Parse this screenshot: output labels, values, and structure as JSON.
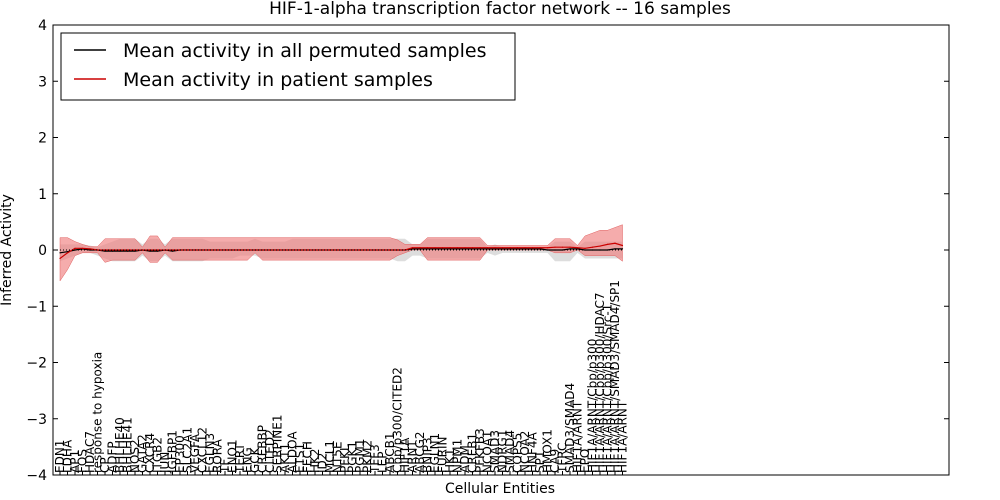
{
  "chart_data": {
    "type": "line",
    "title": "HIF-1-alpha transcription factor network -- 16 samples",
    "xlabel": "Cellular Entities",
    "ylabel": "Inferred Activity",
    "ylim": [
      -4,
      4
    ],
    "yticks": [
      "4",
      "3",
      "2",
      "1",
      "0",
      "−1",
      "−2",
      "−3",
      "−4"
    ],
    "grid": false,
    "legend_position": "top-left",
    "categories": [
      "EDN1",
      "LDHA",
      "AP1",
      "FOS",
      "HDAC7",
      "response to hypoxia",
      "CP",
      "ADFP",
      "BHLHE40",
      "BHLHE41",
      "NOS2",
      "GATA2",
      "CXCR4",
      "ITGB2",
      "JUN",
      "IGFBP1",
      "EP300",
      "SLC2A1",
      "VEGFA",
      "CXCL12",
      "EGLN3",
      "RORA",
      "TF",
      "ENO1",
      "TERT",
      "ENG",
      "GCK",
      "CREBBP",
      "CITED2",
      "SERPINE1",
      "AKT1",
      "ALDOA",
      "ETS1",
      "FECH",
      "HK2",
      "ID2",
      "MCL1",
      "NT5E",
      "PFKL",
      "PGK1",
      "PGM1",
      "PKM2",
      "TFF3",
      "LEP",
      "ABCB1",
      "Cbp/p300/CITED2",
      "HIF1A",
      "ARNT",
      "ABCG2",
      "BNIP3",
      "EGLN1",
      "FURIN",
      "HK1",
      "NPM1",
      "ADM",
      "CREB1",
      "PFKFB3",
      "NCOA1",
      "SMAD3",
      "NDRG1",
      "SMAD4",
      "COPS5",
      "NCOA2",
      "HNF4A",
      "SP1",
      "HMOX1",
      "CA9",
      "TFRC",
      "SMAD3/SMAD4",
      "HIF1A/ARNT",
      "EPO",
      "HIF1A/ARNT/Cbp/p300",
      "HIF1A/ARNT/Cbp/p300/HDAC7",
      "HIF1A/ARNT/Cbp/p300/Src-1",
      "HIF1A/ARNT/SMAD3/SMAD4/SP1",
      "HIF1A/ARNT"
    ],
    "series": [
      {
        "name": "Mean activity in all permuted samples",
        "color": "#000000",
        "values": [
          -0.05,
          -0.03,
          0.0,
          0.02,
          0.0,
          0.0,
          -0.02,
          -0.02,
          -0.02,
          -0.02,
          -0.02,
          0.0,
          -0.02,
          -0.02,
          0.0,
          -0.02,
          0.0,
          0.0,
          0.0,
          0.0,
          0.0,
          0.0,
          0.0,
          0.0,
          0.0,
          0.0,
          0.0,
          0.0,
          0.0,
          0.0,
          0.0,
          0.0,
          0.0,
          0.0,
          0.0,
          0.0,
          0.0,
          0.0,
          0.0,
          0.0,
          0.0,
          0.0,
          0.0,
          0.0,
          0.0,
          0.0,
          0.0,
          0.02,
          0.02,
          0.02,
          0.02,
          0.02,
          0.02,
          0.02,
          0.02,
          0.02,
          0.02,
          0.02,
          0.02,
          0.02,
          0.02,
          0.02,
          0.02,
          0.02,
          0.02,
          0.0,
          0.0,
          0.0,
          0.02,
          0.02,
          0.0,
          0.0,
          0.0,
          0.0,
          0.02,
          0.02
        ],
        "band": {
          "color": "#bbbbbb",
          "lower": [
            -0.2,
            -0.15,
            -0.1,
            -0.05,
            -0.05,
            -0.1,
            -0.15,
            -0.2,
            -0.2,
            -0.2,
            -0.2,
            -0.1,
            -0.2,
            -0.2,
            -0.1,
            -0.2,
            -0.2,
            -0.2,
            -0.2,
            -0.2,
            -0.15,
            -0.15,
            -0.15,
            -0.15,
            -0.1,
            -0.1,
            -0.1,
            -0.15,
            -0.15,
            -0.15,
            -0.15,
            -0.15,
            -0.15,
            -0.15,
            -0.15,
            -0.15,
            -0.15,
            -0.15,
            -0.15,
            -0.15,
            -0.15,
            -0.15,
            -0.15,
            -0.15,
            -0.15,
            -0.2,
            -0.2,
            -0.1,
            -0.1,
            -0.15,
            -0.15,
            -0.15,
            -0.15,
            -0.15,
            -0.15,
            -0.15,
            -0.15,
            -0.05,
            -0.1,
            -0.05,
            -0.05,
            -0.05,
            -0.05,
            -0.05,
            -0.05,
            -0.05,
            -0.2,
            -0.2,
            -0.2,
            -0.05,
            -0.15,
            -0.15,
            -0.15,
            -0.15,
            -0.15,
            -0.15
          ],
          "upper": [
            0.1,
            0.1,
            0.1,
            0.1,
            0.08,
            0.05,
            0.1,
            0.15,
            0.2,
            0.2,
            0.2,
            0.1,
            0.2,
            0.2,
            0.1,
            0.2,
            0.2,
            0.2,
            0.2,
            0.2,
            0.15,
            0.15,
            0.15,
            0.15,
            0.15,
            0.15,
            0.2,
            0.15,
            0.15,
            0.15,
            0.15,
            0.2,
            0.2,
            0.2,
            0.2,
            0.2,
            0.2,
            0.2,
            0.2,
            0.2,
            0.2,
            0.2,
            0.2,
            0.2,
            0.2,
            0.2,
            0.2,
            0.1,
            0.1,
            0.2,
            0.2,
            0.2,
            0.2,
            0.2,
            0.2,
            0.2,
            0.2,
            0.05,
            0.1,
            0.05,
            0.05,
            0.05,
            0.05,
            0.05,
            0.05,
            0.05,
            0.15,
            0.15,
            0.15,
            0.05,
            0.15,
            0.15,
            0.15,
            0.15,
            0.15,
            0.15
          ]
        }
      },
      {
        "name": "Mean activity in patient samples",
        "color": "#cc0000",
        "values": [
          -0.15,
          -0.05,
          0.03,
          0.03,
          0.02,
          0.0,
          0.0,
          0.0,
          0.0,
          0.0,
          0.0,
          0.0,
          0.0,
          0.0,
          0.0,
          0.0,
          0.0,
          0.0,
          0.0,
          0.0,
          0.0,
          0.0,
          0.0,
          0.0,
          0.0,
          0.0,
          0.0,
          0.0,
          0.0,
          0.0,
          0.0,
          0.0,
          0.0,
          0.0,
          0.0,
          0.0,
          0.0,
          0.0,
          0.0,
          0.0,
          0.0,
          0.0,
          0.0,
          0.0,
          0.0,
          0.0,
          0.0,
          0.04,
          0.04,
          0.04,
          0.04,
          0.04,
          0.04,
          0.04,
          0.04,
          0.04,
          0.04,
          0.04,
          0.04,
          0.04,
          0.04,
          0.04,
          0.04,
          0.04,
          0.04,
          0.04,
          0.05,
          0.05,
          0.05,
          0.04,
          0.03,
          0.05,
          0.07,
          0.1,
          0.12,
          0.08
        ],
        "band": {
          "color": "#f08080",
          "lower": [
            -0.55,
            -0.35,
            -0.1,
            -0.05,
            -0.05,
            -0.05,
            -0.22,
            -0.18,
            -0.18,
            -0.18,
            -0.18,
            -0.05,
            -0.22,
            -0.22,
            -0.05,
            -0.18,
            -0.18,
            -0.18,
            -0.18,
            -0.18,
            -0.18,
            -0.18,
            -0.18,
            -0.18,
            -0.18,
            -0.18,
            -0.05,
            -0.18,
            -0.18,
            -0.18,
            -0.18,
            -0.18,
            -0.18,
            -0.18,
            -0.18,
            -0.18,
            -0.18,
            -0.18,
            -0.18,
            -0.18,
            -0.18,
            -0.18,
            -0.18,
            -0.18,
            -0.18,
            -0.1,
            -0.05,
            0.0,
            0.0,
            -0.18,
            -0.18,
            -0.18,
            -0.18,
            -0.18,
            -0.18,
            -0.18,
            -0.18,
            0.0,
            0.0,
            0.0,
            0.0,
            0.0,
            0.0,
            0.0,
            0.0,
            0.0,
            -0.05,
            -0.05,
            -0.05,
            0.0,
            -0.1,
            -0.1,
            -0.1,
            -0.1,
            -0.1,
            -0.2
          ],
          "upper": [
            0.22,
            0.22,
            0.15,
            0.1,
            0.06,
            0.06,
            0.2,
            0.2,
            0.2,
            0.2,
            0.2,
            0.05,
            0.25,
            0.25,
            0.05,
            0.22,
            0.22,
            0.22,
            0.22,
            0.22,
            0.22,
            0.22,
            0.22,
            0.22,
            0.22,
            0.22,
            0.22,
            0.22,
            0.22,
            0.22,
            0.22,
            0.22,
            0.22,
            0.22,
            0.22,
            0.22,
            0.22,
            0.22,
            0.22,
            0.22,
            0.22,
            0.22,
            0.22,
            0.22,
            0.22,
            0.18,
            0.1,
            0.1,
            0.1,
            0.22,
            0.22,
            0.22,
            0.22,
            0.22,
            0.22,
            0.22,
            0.22,
            0.08,
            0.08,
            0.08,
            0.08,
            0.08,
            0.08,
            0.08,
            0.08,
            0.08,
            0.2,
            0.2,
            0.2,
            0.08,
            0.25,
            0.3,
            0.35,
            0.35,
            0.4,
            0.45
          ]
        }
      }
    ]
  }
}
